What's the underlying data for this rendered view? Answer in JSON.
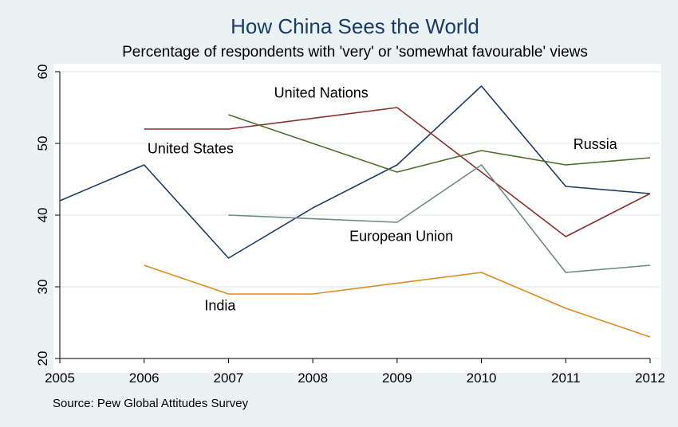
{
  "chart_data": {
    "type": "line",
    "title": "How China Sees the World",
    "subtitle": "Percentage of respondents with 'very' or 'somewhat favourable' views",
    "source": "Source: Pew Global Attitudes Survey",
    "xlabel": "",
    "ylabel": "",
    "x": [
      2005,
      2006,
      2007,
      2008,
      2009,
      2010,
      2011,
      2012
    ],
    "xlim": [
      2005,
      2012
    ],
    "ylim": [
      20,
      60
    ],
    "yticks": [
      20,
      30,
      40,
      50,
      60
    ],
    "grid": true,
    "legend": "inline labels",
    "series": [
      {
        "name": "United States",
        "color": "#1f3c63",
        "x": [
          2005,
          2006,
          2007,
          2008,
          2009,
          2010,
          2011,
          2012
        ],
        "values": [
          42,
          47,
          34,
          41,
          47,
          58,
          44,
          43
        ]
      },
      {
        "name": "United Nations",
        "color": "#8b2e2e",
        "x": [
          2006,
          2007,
          2009,
          2010,
          2011,
          2012
        ],
        "values": [
          52,
          52,
          55,
          46,
          37,
          43
        ]
      },
      {
        "name": "Russia",
        "color": "#4a6e2a",
        "x": [
          2007,
          2009,
          2010,
          2011,
          2012
        ],
        "values": [
          54,
          46,
          49,
          47,
          48
        ]
      },
      {
        "name": "European Union",
        "color": "#6f8a82",
        "x": [
          2007,
          2009,
          2010,
          2011,
          2012
        ],
        "values": [
          40,
          39,
          47,
          32,
          33
        ]
      },
      {
        "name": "India",
        "color": "#e08a1a",
        "x": [
          2006,
          2007,
          2008,
          2010,
          2011,
          2012
        ],
        "values": [
          33,
          29,
          29,
          32,
          27,
          23
        ]
      }
    ]
  }
}
